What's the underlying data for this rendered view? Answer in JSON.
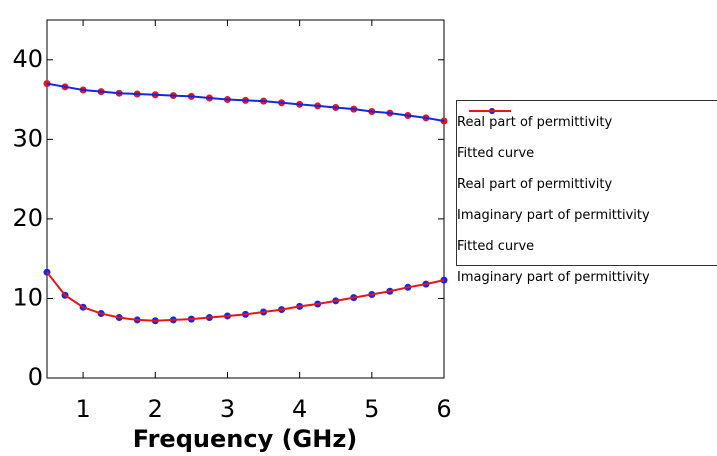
{
  "chart_data": {
    "type": "line",
    "x_label": "Frequency (GHz)",
    "x": [
      0.5,
      0.75,
      1,
      1.25,
      1.5,
      1.75,
      2,
      2.25,
      2.5,
      2.75,
      3,
      3.25,
      3.5,
      3.75,
      4,
      4.25,
      4.5,
      4.75,
      5,
      5.25,
      5.5,
      5.75,
      6
    ],
    "series": [
      {
        "name": "Real part of permittivity",
        "color": "#e8141c",
        "style": "dots",
        "values": [
          37,
          36.6,
          36.2,
          36,
          35.8,
          35.7,
          35.6,
          35.5,
          35.4,
          35.2,
          35.0,
          34.9,
          34.8,
          34.6,
          34.4,
          34.2,
          34.0,
          33.8,
          33.5,
          33.3,
          33.0,
          32.7,
          32.3
        ]
      },
      {
        "name": "Fitted curve\nReal part of permittivity",
        "color": "#1428e0",
        "style": "line",
        "values": [
          37,
          36.6,
          36.2,
          36,
          35.8,
          35.7,
          35.6,
          35.5,
          35.4,
          35.2,
          35.0,
          34.9,
          34.8,
          34.6,
          34.4,
          34.2,
          34.0,
          33.8,
          33.5,
          33.3,
          33.0,
          32.7,
          32.3
        ]
      },
      {
        "name": "Imaginary part of permittivity",
        "color": "#1428e0",
        "style": "dots",
        "values": [
          13.3,
          10.4,
          8.9,
          8.1,
          7.6,
          7.3,
          7.2,
          7.3,
          7.4,
          7.6,
          7.8,
          8.0,
          8.3,
          8.6,
          9.0,
          9.3,
          9.7,
          10.1,
          10.5,
          10.9,
          11.4,
          11.8,
          12.3
        ]
      },
      {
        "name": "Fitted curve\nImaginary part of permittivity",
        "color": "#e8141c",
        "style": "line",
        "values": [
          13.3,
          10.4,
          8.9,
          8.1,
          7.6,
          7.3,
          7.2,
          7.3,
          7.4,
          7.6,
          7.8,
          8.0,
          8.3,
          8.6,
          9.0,
          9.3,
          9.7,
          10.1,
          10.5,
          10.9,
          11.4,
          11.8,
          12.3
        ]
      }
    ],
    "xlim": [
      0.5,
      6
    ],
    "xticks": [
      1,
      2,
      3,
      4,
      5,
      6
    ],
    "ylim": [
      0,
      45
    ],
    "yticks": [
      0,
      10,
      20,
      30,
      40
    ],
    "grid": false,
    "legend": "right"
  }
}
